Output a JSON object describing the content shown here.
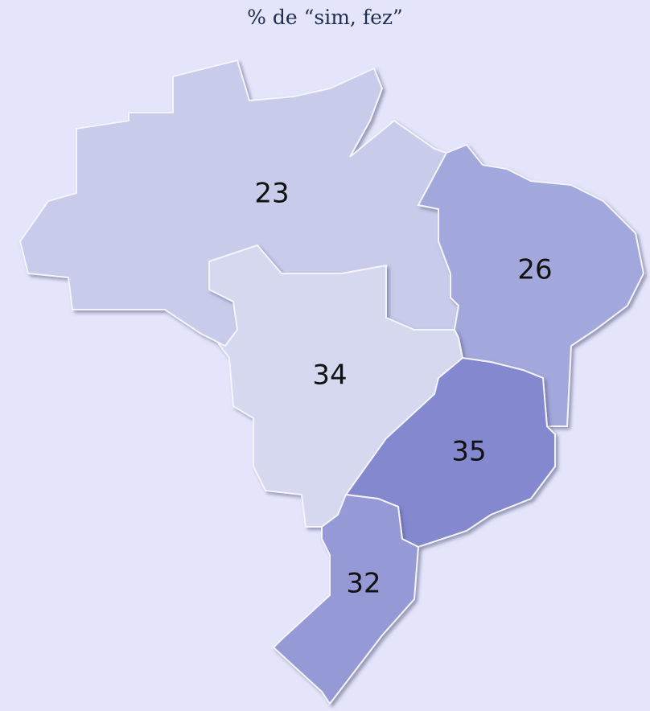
{
  "title": "% de “sim, fez”",
  "regions": [
    {
      "value": 23,
      "color": "#c8cbe9"
    },
    {
      "value": 26,
      "color": "#a3a8dc"
    },
    {
      "value": 34,
      "color": "#d6d8f0"
    },
    {
      "value": 35,
      "color": "#8489cf"
    },
    {
      "value": 32,
      "color": "#959ad6"
    }
  ]
}
